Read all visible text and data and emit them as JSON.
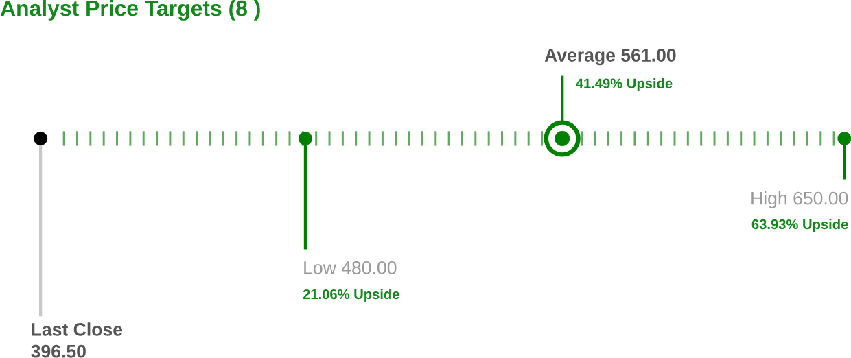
{
  "chart_data": {
    "type": "other",
    "title": "Analyst Price Targets (8 )",
    "categories": [
      "Last Close",
      "Low",
      "Average",
      "High"
    ],
    "values": [
      396.5,
      480,
      561,
      650
    ],
    "value_labels": [
      "396.50",
      "480.00",
      "561.00",
      "650.00"
    ],
    "colors": [
      "#000000",
      "#008000",
      "#008000",
      "#008000"
    ],
    "annotations": [
      "21.06% Upside",
      "41.49% Upside",
      "63.93% Upside"
    ]
  }
}
